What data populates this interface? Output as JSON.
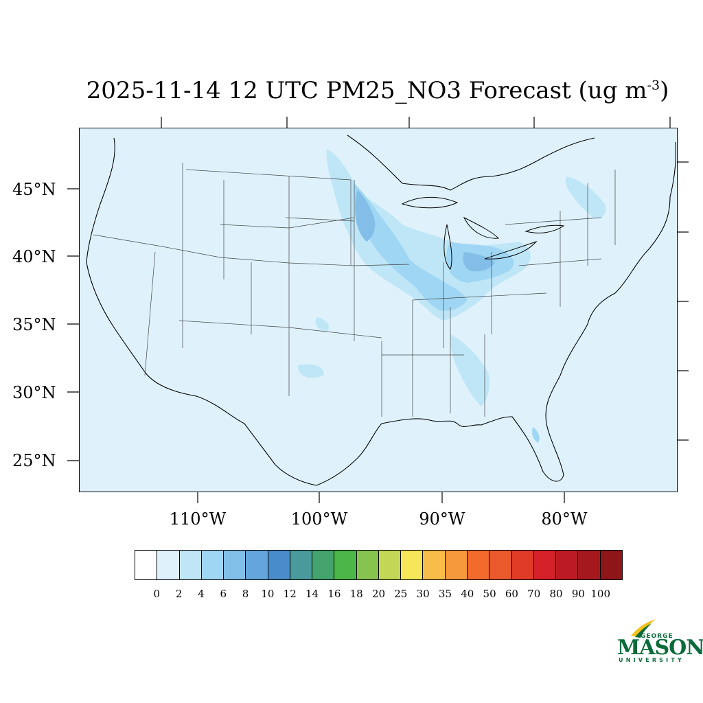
{
  "title": {
    "main": "2025-11-14 12 UTC PM25_NO3 Forecast (ug m",
    "exponent": "-3",
    "suffix": ")"
  },
  "latitude_labels": [
    "45°N",
    "40°N",
    "35°N",
    "30°N",
    "25°N"
  ],
  "longitude_labels": [
    "110°W",
    "100°W",
    "90°W",
    "80°W"
  ],
  "colorbar": {
    "labels": [
      "0",
      "2",
      "4",
      "6",
      "8",
      "10",
      "12",
      "14",
      "16",
      "18",
      "20",
      "25",
      "30",
      "35",
      "40",
      "50",
      "60",
      "70",
      "80",
      "90",
      "100"
    ],
    "colors": [
      "#ffffff",
      "#dff2fb",
      "#bfe6f7",
      "#9fd6f3",
      "#82bee8",
      "#64a6dc",
      "#4a8bc9",
      "#4a9a9c",
      "#45a36e",
      "#4cb648",
      "#86c34f",
      "#c3d656",
      "#f6e65a",
      "#f7bd48",
      "#f6983c",
      "#f26b2c",
      "#eb5a2c",
      "#e03b27",
      "#d42029",
      "#bd1b24",
      "#a4181e",
      "#8e1518"
    ]
  },
  "map": {
    "background_color": "#dff2fb",
    "ocean_color": "#dff2fb"
  },
  "logo": {
    "george": "GEORGE",
    "mason": "MASON",
    "university": "UNIVERSITY",
    "color": "#0a6b3a",
    "accent": "#f2c21b"
  }
}
